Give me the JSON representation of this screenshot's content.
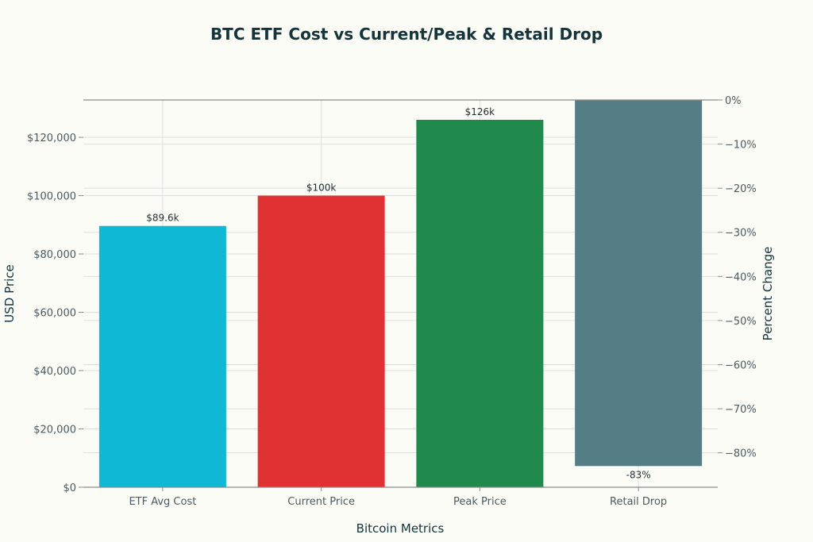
{
  "chart_data": {
    "type": "bar",
    "title": "BTC ETF Cost vs Current/Peak & Retail Drop",
    "xlabel": "Bitcoin Metrics",
    "ylabel": "USD Price",
    "y2label": "Percent Change",
    "categories": [
      "ETF Avg Cost",
      "Current Price",
      "Peak Price",
      "Retail Drop"
    ],
    "bars": [
      {
        "category": "ETF Avg Cost",
        "value": 89600,
        "axis": "left",
        "label": "$89.6k",
        "color": "#0fb8d3"
      },
      {
        "category": "Current Price",
        "value": 100000,
        "axis": "left",
        "label": "$100k",
        "color": "#e03232"
      },
      {
        "category": "Peak Price",
        "value": 126000,
        "axis": "left",
        "label": "$126k",
        "color": "#1f8a4c"
      },
      {
        "category": "Retail Drop",
        "value": -83,
        "axis": "right",
        "label": "-83%",
        "color": "#557d85"
      }
    ],
    "ylim": [
      0,
      132800
    ],
    "yticks": [
      0,
      20000,
      40000,
      60000,
      80000,
      100000,
      120000
    ],
    "ytick_labels": [
      "$0",
      "$20,000",
      "$40,000",
      "$60,000",
      "$80,000",
      "$100,000",
      "$120,000"
    ],
    "y2lim": [
      -87.8,
      0
    ],
    "y2ticks": [
      0,
      -10,
      -20,
      -30,
      -40,
      -50,
      -60,
      -70,
      -80
    ],
    "y2tick_labels": [
      "0%",
      "−10%",
      "−20%",
      "−30%",
      "−40%",
      "−50%",
      "−60%",
      "−70%",
      "−80%"
    ],
    "grid": true,
    "legend": "none"
  }
}
